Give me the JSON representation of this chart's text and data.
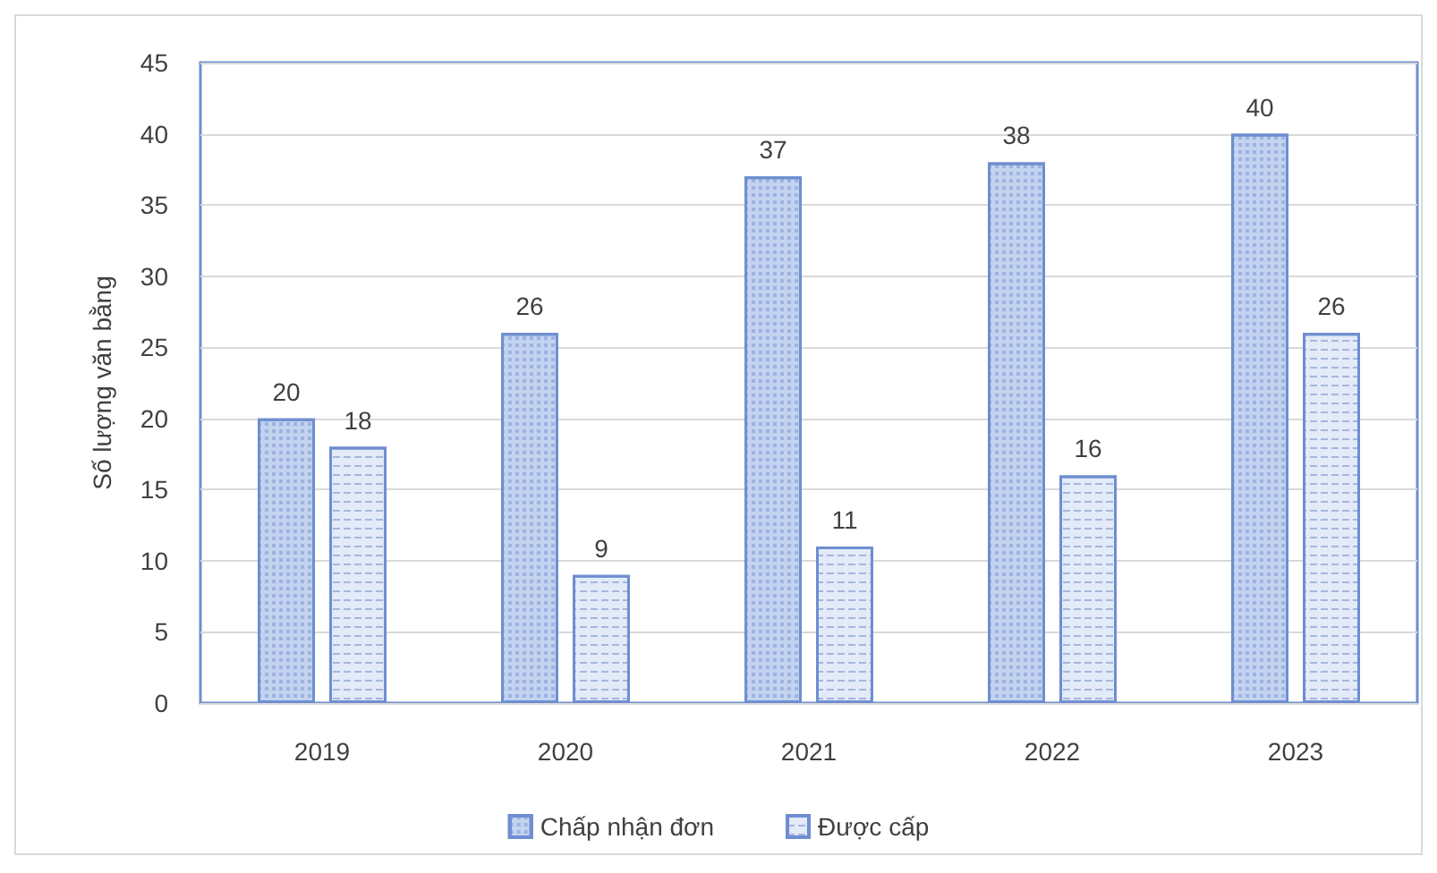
{
  "chart_data": {
    "type": "bar",
    "ylabel": "Số lượng văn bằng",
    "categories": [
      "2019",
      "2020",
      "2021",
      "2022",
      "2023"
    ],
    "series": [
      {
        "name": "Chấp nhận đơn",
        "color": "#c3d3f0",
        "values": [
          20,
          26,
          37,
          38,
          40
        ]
      },
      {
        "name": "Được cấp",
        "color": "#e3eaf8",
        "values": [
          18,
          9,
          11,
          16,
          26
        ]
      }
    ],
    "ylim": [
      0,
      45
    ],
    "yticks": [
      0,
      5,
      10,
      15,
      20,
      25,
      30,
      35,
      40,
      45
    ],
    "grid": "y",
    "legend": "bottom",
    "data_labels": true
  }
}
